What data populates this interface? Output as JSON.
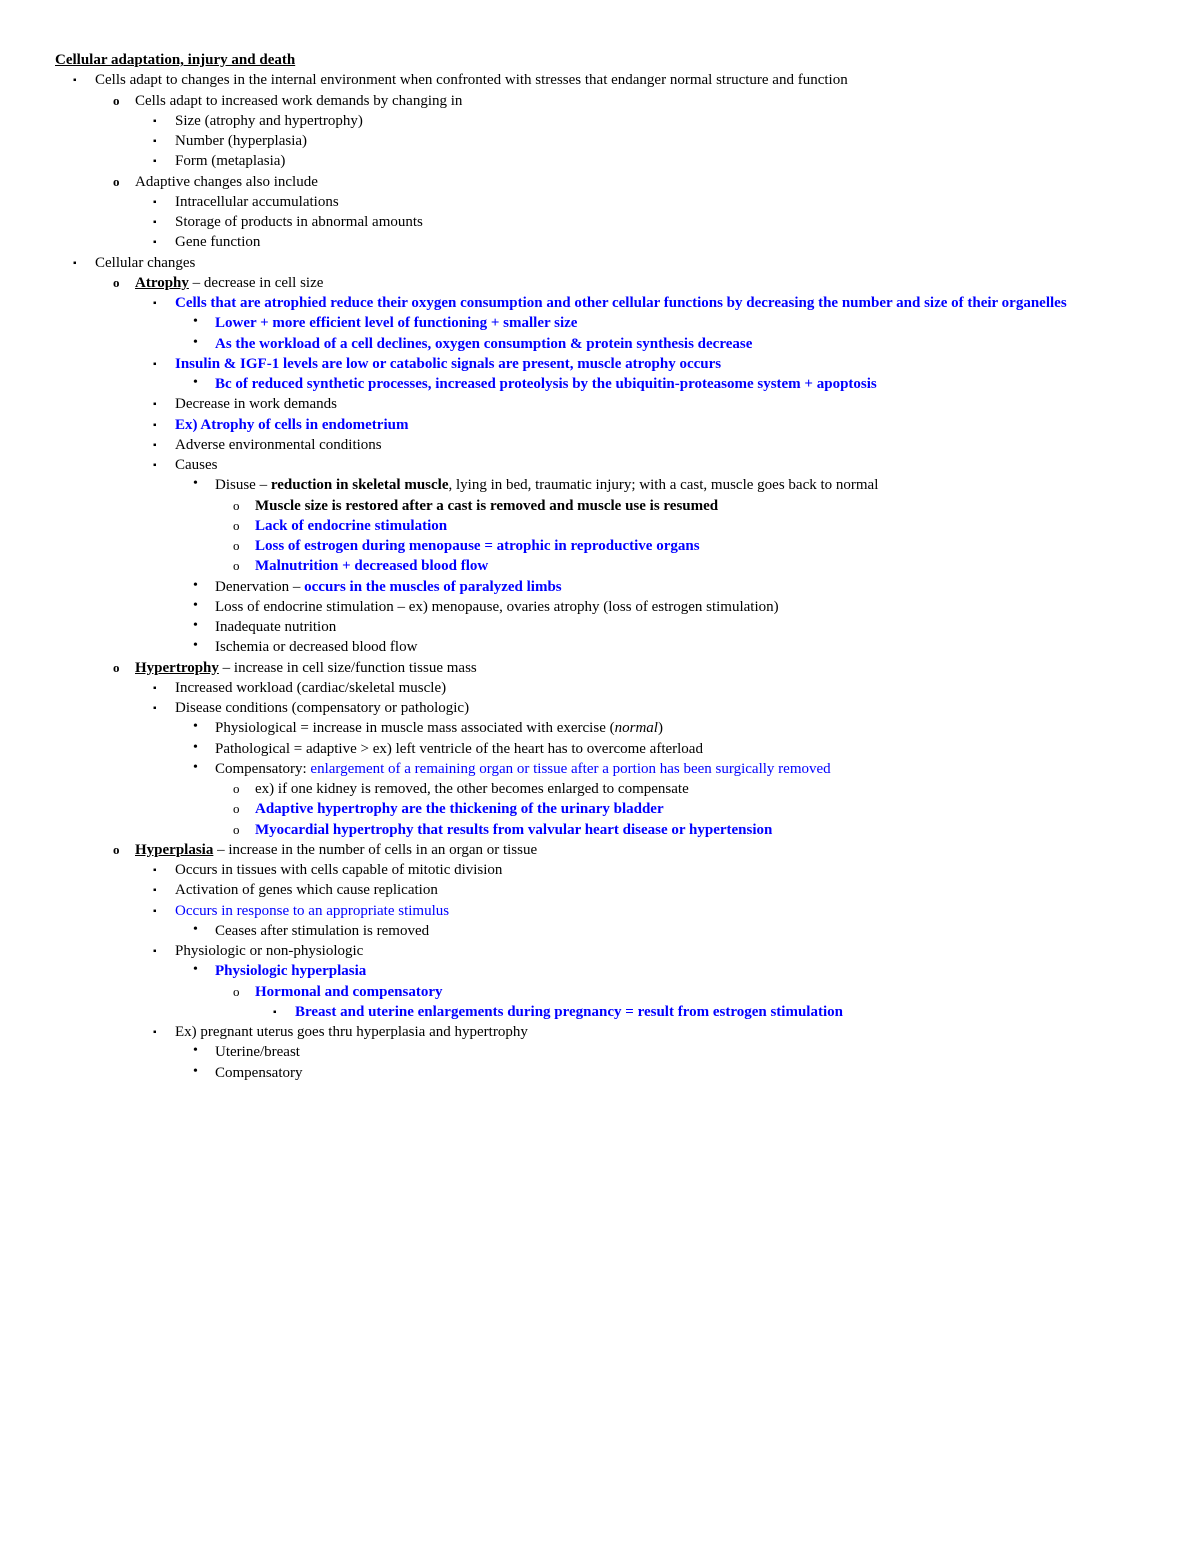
{
  "title": "Cellular adaptation, injury and death",
  "l1_intro": "Cells adapt to changes in the internal environment when confronted with stresses that endanger normal structure and function",
  "l2_adapt": "Cells adapt to increased work demands by changing in",
  "l3_size": "Size (atrophy and hypertrophy)",
  "l3_number": "Number (hyperplasia)",
  "l3_form": "Form (metaplasia)",
  "l2_adaptive": "Adaptive changes also include",
  "l3_intra": "Intracellular accumulations",
  "l3_storage": "Storage of products in abnormal amounts",
  "l3_gene": "Gene function",
  "l1_cellchanges": "Cellular changes",
  "atrophy_label": "Atrophy",
  "atrophy_def": " – decrease in cell size",
  "atrophy_b1": "Cells that are atrophied reduce their oxygen consumption and other cellular functions by decreasing the number and size of their organelles",
  "atrophy_b1a": "Lower + more efficient level of functioning + smaller size",
  "atrophy_b1b": "As the workload of a cell declines, oxygen consumption & protein synthesis decrease",
  "atrophy_b2": "Insulin & IGF-1 levels are low or catabolic signals are present, muscle atrophy occurs",
  "atrophy_b2a": "Bc of reduced synthetic processes, increased proteolysis by the ubiquitin-proteasome system + apoptosis",
  "atrophy_b3": "Decrease in work demands",
  "atrophy_b4": "Ex) Atrophy of cells in endometrium",
  "atrophy_b5": "Adverse environmental conditions",
  "atrophy_b6": "Causes",
  "disuse_pre": "Disuse – ",
  "disuse_bold": "reduction in skeletal muscle",
  "disuse_post": ", lying in bed, traumatic injury; with a cast, muscle goes back to normal",
  "disuse_a": "Muscle size is restored after a cast is removed and muscle use is resumed",
  "disuse_b": "Lack of endocrine stimulation",
  "disuse_c": "Loss of estrogen during menopause = atrophic in reproductive organs",
  "disuse_d": "Malnutrition + decreased blood flow",
  "denerv_pre": "Denervation – ",
  "denerv_blue": "occurs in the muscles of paralyzed limbs",
  "loss_endo": "Loss of endocrine stimulation – ex) menopause, ovaries atrophy (loss of estrogen stimulation)",
  "inad_nut": "Inadequate nutrition",
  "ischemia": "Ischemia or decreased blood flow",
  "hyper_label": "Hypertrophy",
  "hyper_def": " – increase in cell size/function tissue mass",
  "hyper_b1": "Increased workload (cardiac/skeletal muscle)",
  "hyper_b2": "Disease conditions (compensatory or pathologic)",
  "hyper_phys_pre": "Physiological = increase in muscle mass associated with exercise (",
  "hyper_phys_it": "normal",
  "hyper_phys_post": ")",
  "hyper_path": "Pathological = adaptive > ex) left ventricle of the heart has to overcome afterload",
  "hyper_comp_pre": "Compensatory: ",
  "hyper_comp_blue": "enlargement of a remaining organ or tissue after a portion has been surgically removed",
  "hyper_comp_a": "ex) if one kidney is removed, the other becomes enlarged to compensate",
  "hyper_comp_b": "Adaptive hypertrophy are the thickening of the urinary bladder",
  "hyper_comp_c": "Myocardial hypertrophy that results from valvular heart disease or hypertension",
  "plas_label": "Hyperplasia",
  "plas_def": " – increase in the number of cells in an organ or tissue",
  "plas_b1": "Occurs in tissues with cells capable of mitotic division",
  "plas_b2": "Activation of genes which cause replication",
  "plas_b3": "Occurs in response to an appropriate stimulus",
  "plas_b3a": "Ceases after stimulation is removed",
  "plas_b4": "Physiologic or non-physiologic",
  "plas_b4a": "Physiologic hyperplasia",
  "plas_b4a1": "Hormonal and compensatory",
  "plas_b4a1a": "Breast and uterine enlargements during pregnancy = result from estrogen stimulation",
  "plas_b5": "Ex) pregnant uterus goes thru hyperplasia and hypertrophy",
  "plas_b5a": "Uterine/breast",
  "plas_b5b": "Compensatory",
  "colors": {
    "blue": "#0000ff",
    "text": "#000000",
    "bg": "#ffffff"
  },
  "fonts": {
    "family": "Times New Roman",
    "size_pt": 11
  }
}
